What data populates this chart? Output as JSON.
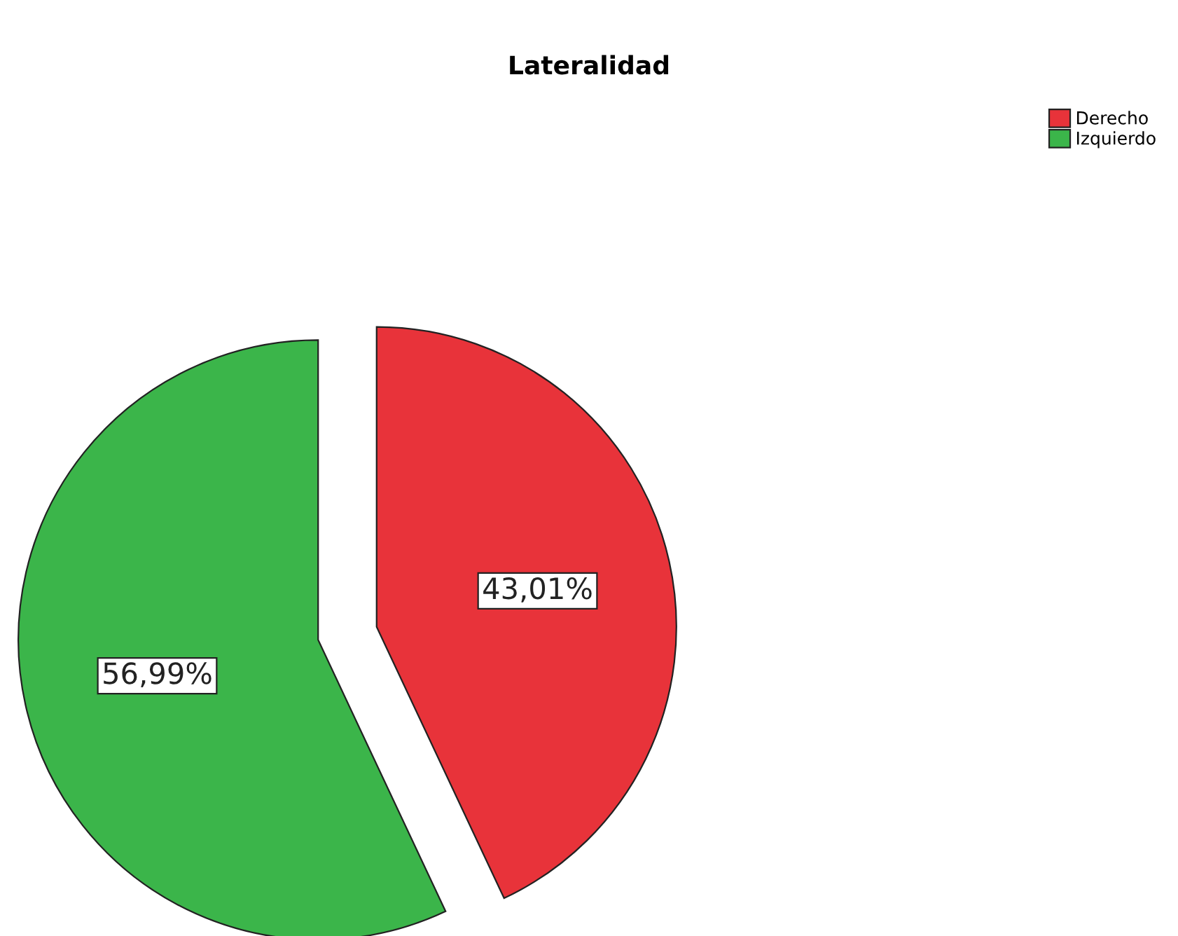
{
  "chart_data": {
    "type": "pie",
    "title": "Lateralidad",
    "categories": [
      "Derecho",
      "Izquierdo"
    ],
    "values": [
      43.01,
      56.99
    ],
    "colors": [
      "#e8333a",
      "#3bb54a"
    ],
    "value_labels": [
      "43,01%",
      "56,99%"
    ],
    "legend": "top right"
  }
}
